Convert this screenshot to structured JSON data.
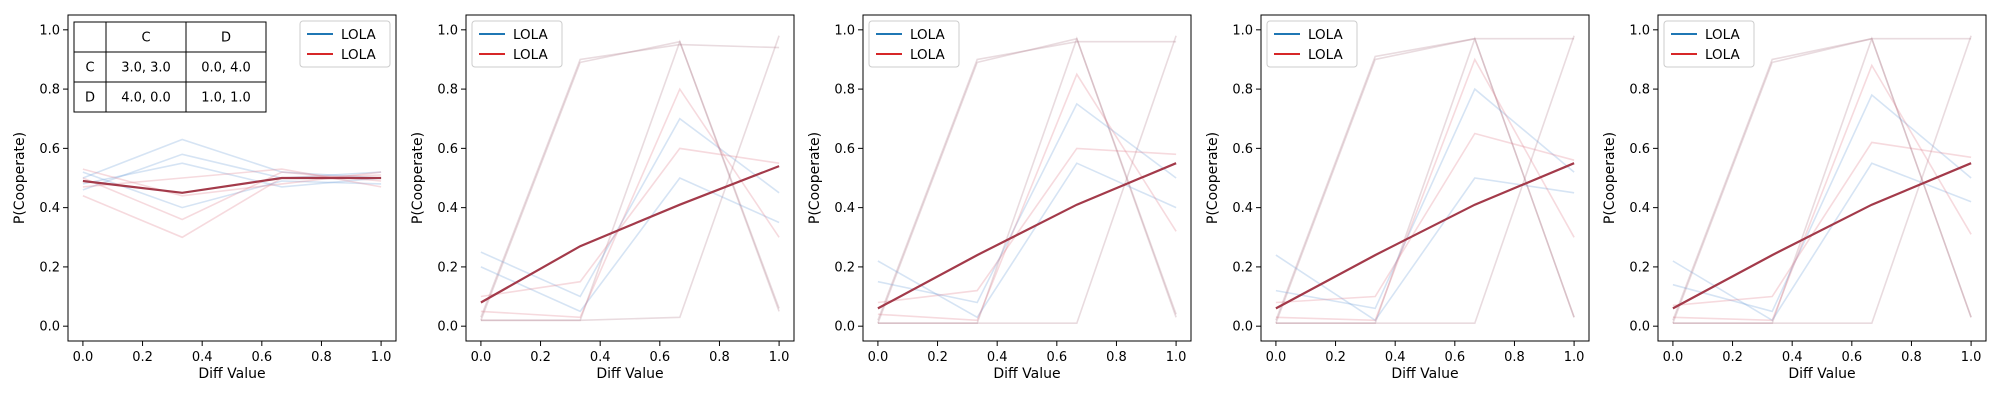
{
  "chart_data": [
    {
      "type": "line",
      "xlabel": "Diff Value",
      "ylabel": "P(Cooperate)",
      "xlim": [
        -0.05,
        1.05
      ],
      "ylim": [
        -0.05,
        1.05
      ],
      "xticks": [
        "0.0",
        "0.2",
        "0.4",
        "0.6",
        "0.8",
        "1.0"
      ],
      "yticks": [
        "0.0",
        "0.2",
        "0.4",
        "0.6",
        "0.8",
        "1.0"
      ],
      "legend": {
        "placement": "top-right",
        "entries": [
          {
            "label": "LOLA",
            "color": "#1f77b4"
          },
          {
            "label": "LOLA",
            "color": "#d62728"
          }
        ]
      },
      "payoff_table": {
        "header": [
          "",
          "C",
          "D"
        ],
        "rows": [
          [
            "C",
            "3.0, 3.0",
            "0.0, 4.0"
          ],
          [
            "D",
            "4.0, 0.0",
            "1.0, 1.0"
          ]
        ]
      },
      "x": [
        0.0,
        0.333,
        0.667,
        1.0
      ],
      "series": [
        {
          "color": "#a33a4a",
          "values": [
            0.49,
            0.45,
            0.5,
            0.5
          ]
        }
      ],
      "faint_series": [
        {
          "color": "#6a9ed6",
          "values": [
            0.5,
            0.63,
            0.52,
            0.5
          ]
        },
        {
          "color": "#6a9ed6",
          "values": [
            0.46,
            0.58,
            0.5,
            0.52
          ]
        },
        {
          "color": "#6a9ed6",
          "values": [
            0.52,
            0.4,
            0.49,
            0.48
          ]
        },
        {
          "color": "#6a9ed6",
          "values": [
            0.48,
            0.55,
            0.47,
            0.5
          ]
        },
        {
          "color": "#e07a8a",
          "values": [
            0.5,
            0.36,
            0.52,
            0.49
          ]
        },
        {
          "color": "#e07a8a",
          "values": [
            0.44,
            0.3,
            0.5,
            0.51
          ]
        },
        {
          "color": "#e07a8a",
          "values": [
            0.53,
            0.44,
            0.48,
            0.52
          ]
        },
        {
          "color": "#e07a8a",
          "values": [
            0.47,
            0.5,
            0.53,
            0.47
          ]
        }
      ]
    },
    {
      "type": "line",
      "xlabel": "Diff Value",
      "ylabel": "P(Cooperate)",
      "xlim": [
        -0.05,
        1.05
      ],
      "ylim": [
        -0.05,
        1.05
      ],
      "xticks": [
        "0.0",
        "0.2",
        "0.4",
        "0.6",
        "0.8",
        "1.0"
      ],
      "yticks": [
        "0.0",
        "0.2",
        "0.4",
        "0.6",
        "0.8",
        "1.0"
      ],
      "legend": {
        "placement": "top-left",
        "entries": [
          {
            "label": "LOLA",
            "color": "#1f77b4"
          },
          {
            "label": "LOLA",
            "color": "#d62728"
          }
        ]
      },
      "x": [
        0.0,
        0.333,
        0.667,
        1.0
      ],
      "series": [
        {
          "color": "#a33a4a",
          "values": [
            0.08,
            0.27,
            0.41,
            0.54
          ]
        }
      ],
      "faint_series": [
        {
          "color": "#b07c8c",
          "values": [
            0.02,
            0.89,
            0.96,
            0.05
          ]
        },
        {
          "color": "#b07c8c",
          "values": [
            0.03,
            0.9,
            0.95,
            0.94
          ]
        },
        {
          "color": "#b07c8c",
          "values": [
            0.02,
            0.02,
            0.03,
            0.98
          ]
        },
        {
          "color": "#b07c8c",
          "values": [
            0.02,
            0.02,
            0.96,
            0.06
          ]
        },
        {
          "color": "#6a9ed6",
          "values": [
            0.2,
            0.05,
            0.5,
            0.35
          ]
        },
        {
          "color": "#6a9ed6",
          "values": [
            0.25,
            0.1,
            0.7,
            0.45
          ]
        },
        {
          "color": "#e07a8a",
          "values": [
            0.1,
            0.15,
            0.6,
            0.55
          ]
        },
        {
          "color": "#e07a8a",
          "values": [
            0.05,
            0.03,
            0.8,
            0.3
          ]
        }
      ]
    },
    {
      "type": "line",
      "xlabel": "Diff Value",
      "ylabel": "P(Cooperate)",
      "xlim": [
        -0.05,
        1.05
      ],
      "ylim": [
        -0.05,
        1.05
      ],
      "xticks": [
        "0.0",
        "0.2",
        "0.4",
        "0.6",
        "0.8",
        "1.0"
      ],
      "yticks": [
        "0.0",
        "0.2",
        "0.4",
        "0.6",
        "0.8",
        "1.0"
      ],
      "legend": {
        "placement": "top-left",
        "entries": [
          {
            "label": "LOLA",
            "color": "#1f77b4"
          },
          {
            "label": "LOLA",
            "color": "#d62728"
          }
        ]
      },
      "x": [
        0.0,
        0.333,
        0.667,
        1.0
      ],
      "series": [
        {
          "color": "#a33a4a",
          "values": [
            0.06,
            0.24,
            0.41,
            0.55
          ]
        }
      ],
      "faint_series": [
        {
          "color": "#b07c8c",
          "values": [
            0.01,
            0.89,
            0.97,
            0.03
          ]
        },
        {
          "color": "#b07c8c",
          "values": [
            0.02,
            0.9,
            0.96,
            0.96
          ]
        },
        {
          "color": "#b07c8c",
          "values": [
            0.01,
            0.01,
            0.01,
            0.98
          ]
        },
        {
          "color": "#b07c8c",
          "values": [
            0.01,
            0.01,
            0.97,
            0.04
          ]
        },
        {
          "color": "#6a9ed6",
          "values": [
            0.22,
            0.03,
            0.55,
            0.4
          ]
        },
        {
          "color": "#6a9ed6",
          "values": [
            0.15,
            0.08,
            0.75,
            0.5
          ]
        },
        {
          "color": "#e07a8a",
          "values": [
            0.08,
            0.12,
            0.6,
            0.58
          ]
        },
        {
          "color": "#e07a8a",
          "values": [
            0.04,
            0.02,
            0.85,
            0.32
          ]
        }
      ]
    },
    {
      "type": "line",
      "xlabel": "Diff Value",
      "ylabel": "P(Cooperate)",
      "xlim": [
        -0.05,
        1.05
      ],
      "ylim": [
        -0.05,
        1.05
      ],
      "xticks": [
        "0.0",
        "0.2",
        "0.4",
        "0.6",
        "0.8",
        "1.0"
      ],
      "yticks": [
        "0.0",
        "0.2",
        "0.4",
        "0.6",
        "0.8",
        "1.0"
      ],
      "legend": {
        "placement": "top-left",
        "entries": [
          {
            "label": "LOLA",
            "color": "#1f77b4"
          },
          {
            "label": "LOLA",
            "color": "#d62728"
          }
        ]
      },
      "x": [
        0.0,
        0.333,
        0.667,
        1.0
      ],
      "series": [
        {
          "color": "#a33a4a",
          "values": [
            0.06,
            0.24,
            0.41,
            0.55
          ]
        }
      ],
      "faint_series": [
        {
          "color": "#b07c8c",
          "values": [
            0.01,
            0.9,
            0.97,
            0.03
          ]
        },
        {
          "color": "#b07c8c",
          "values": [
            0.02,
            0.91,
            0.97,
            0.97
          ]
        },
        {
          "color": "#b07c8c",
          "values": [
            0.01,
            0.01,
            0.01,
            0.98
          ]
        },
        {
          "color": "#b07c8c",
          "values": [
            0.01,
            0.01,
            0.97,
            0.03
          ]
        },
        {
          "color": "#6a9ed6",
          "values": [
            0.24,
            0.02,
            0.5,
            0.45
          ]
        },
        {
          "color": "#6a9ed6",
          "values": [
            0.12,
            0.06,
            0.8,
            0.52
          ]
        },
        {
          "color": "#e07a8a",
          "values": [
            0.08,
            0.1,
            0.65,
            0.56
          ]
        },
        {
          "color": "#e07a8a",
          "values": [
            0.03,
            0.02,
            0.9,
            0.3
          ]
        }
      ]
    },
    {
      "type": "line",
      "xlabel": "Diff Value",
      "ylabel": "P(Cooperate)",
      "xlim": [
        -0.05,
        1.05
      ],
      "ylim": [
        -0.05,
        1.05
      ],
      "xticks": [
        "0.0",
        "0.2",
        "0.4",
        "0.6",
        "0.8",
        "1.0"
      ],
      "yticks": [
        "0.0",
        "0.2",
        "0.4",
        "0.6",
        "0.8",
        "1.0"
      ],
      "legend": {
        "placement": "top-left",
        "entries": [
          {
            "label": "LOLA",
            "color": "#1f77b4"
          },
          {
            "label": "LOLA",
            "color": "#d62728"
          }
        ]
      },
      "x": [
        0.0,
        0.333,
        0.667,
        1.0
      ],
      "series": [
        {
          "color": "#a33a4a",
          "values": [
            0.06,
            0.24,
            0.41,
            0.55
          ]
        }
      ],
      "faint_series": [
        {
          "color": "#b07c8c",
          "values": [
            0.01,
            0.89,
            0.97,
            0.03
          ]
        },
        {
          "color": "#b07c8c",
          "values": [
            0.02,
            0.9,
            0.97,
            0.97
          ]
        },
        {
          "color": "#b07c8c",
          "values": [
            0.01,
            0.01,
            0.01,
            0.98
          ]
        },
        {
          "color": "#b07c8c",
          "values": [
            0.01,
            0.01,
            0.97,
            0.03
          ]
        },
        {
          "color": "#6a9ed6",
          "values": [
            0.22,
            0.02,
            0.55,
            0.42
          ]
        },
        {
          "color": "#6a9ed6",
          "values": [
            0.14,
            0.05,
            0.78,
            0.5
          ]
        },
        {
          "color": "#e07a8a",
          "values": [
            0.07,
            0.1,
            0.62,
            0.57
          ]
        },
        {
          "color": "#e07a8a",
          "values": [
            0.03,
            0.02,
            0.88,
            0.31
          ]
        }
      ]
    }
  ]
}
